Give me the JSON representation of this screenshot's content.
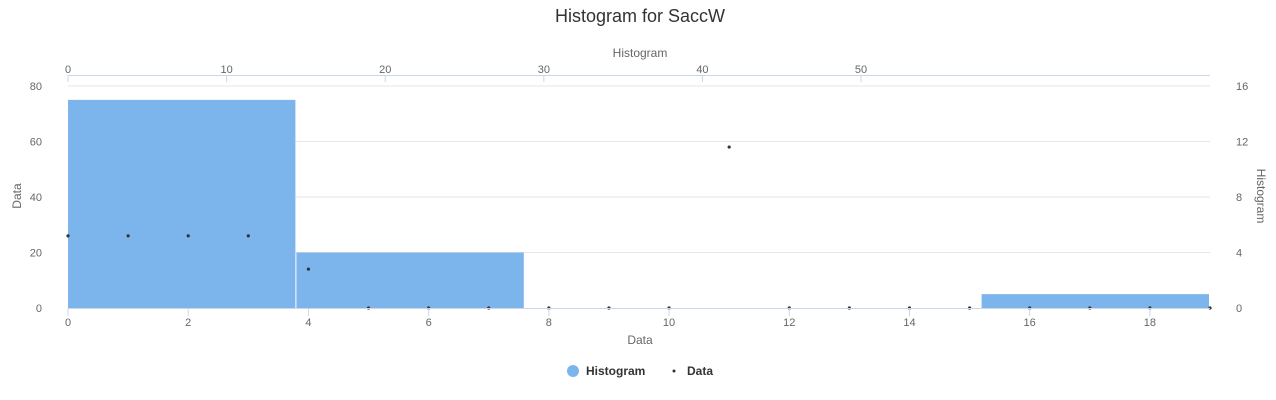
{
  "chart_data": {
    "type": "bar",
    "title": "Histogram for SaccW",
    "histogram": {
      "name": "Histogram",
      "color": "#7cb5ec",
      "bins": [
        {
          "x0": 0,
          "x1": 3.8,
          "count": 75
        },
        {
          "x0": 3.8,
          "x1": 7.6,
          "count": 20
        },
        {
          "x0": 15.2,
          "x1": 19.0,
          "count": 5
        }
      ]
    },
    "scatter": {
      "name": "Data",
      "color": "#333333",
      "x": [
        0,
        1,
        2,
        3,
        4,
        5,
        6,
        7,
        8,
        9,
        10,
        11,
        12,
        13,
        14,
        15,
        16,
        17,
        18,
        19
      ],
      "y": [
        26,
        26,
        26,
        26,
        14,
        0,
        0,
        0,
        0,
        0,
        0,
        58,
        0,
        0,
        0,
        0,
        0,
        0,
        0,
        0
      ]
    },
    "axes": {
      "x_bottom": {
        "title": "Data",
        "min": 0,
        "max": 19,
        "ticks": [
          "0",
          "2",
          "4",
          "6",
          "8",
          "10",
          "12",
          "14",
          "16",
          "18"
        ]
      },
      "x_top": {
        "title": "Histogram",
        "min": 0,
        "max": 72,
        "ticks": [
          "0",
          "10",
          "20",
          "30",
          "40",
          "50"
        ]
      },
      "y_left": {
        "title": "Data",
        "min": 0,
        "max": 80,
        "ticks": [
          "0",
          "20",
          "40",
          "60",
          "80"
        ]
      },
      "y_right": {
        "title": "Histogram",
        "min": 0,
        "max": 16,
        "ticks": [
          "0",
          "4",
          "8",
          "12",
          "16"
        ]
      }
    },
    "grid": true,
    "legend": {
      "position": "bottom-center",
      "items": [
        "Histogram",
        "Data"
      ]
    }
  }
}
